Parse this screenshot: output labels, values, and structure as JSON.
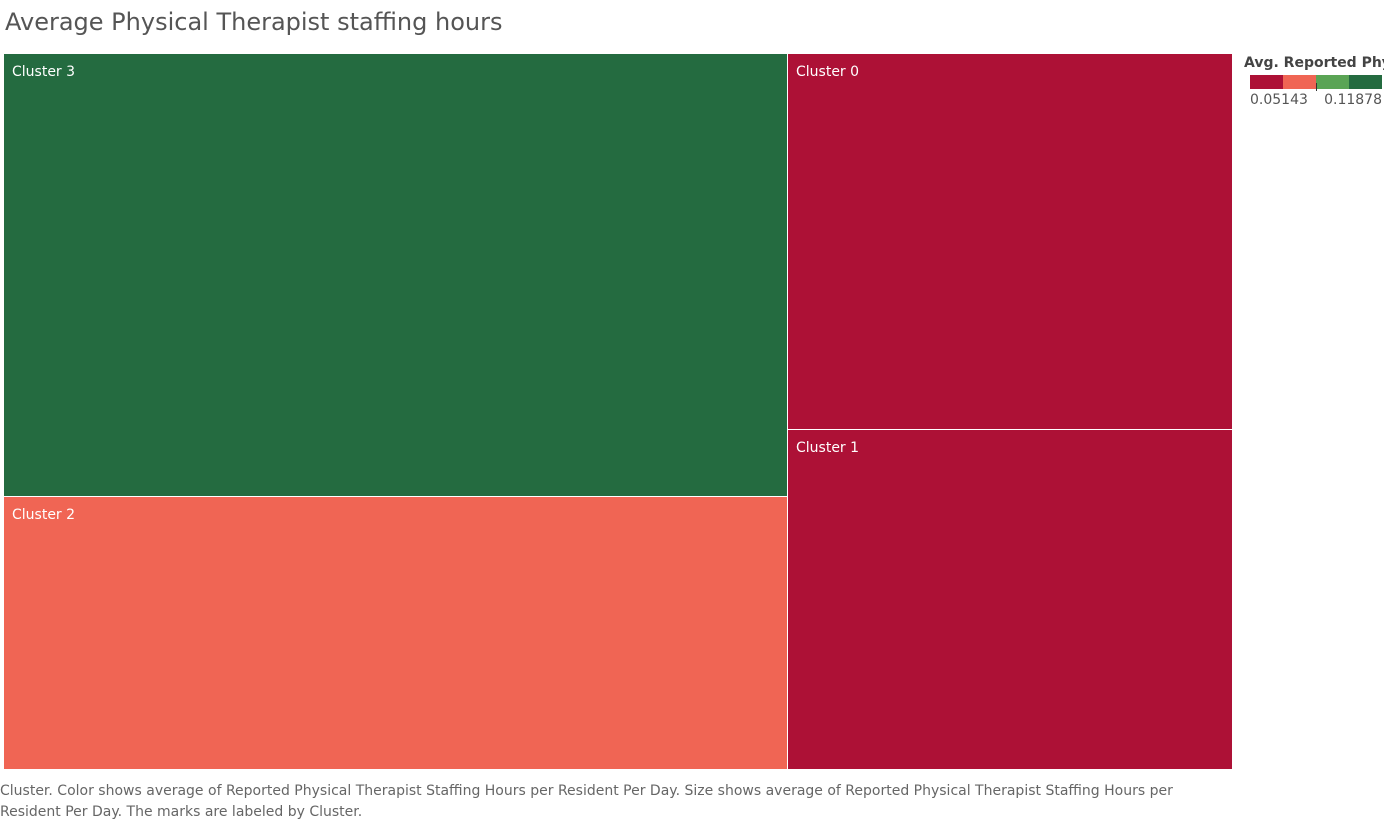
{
  "title": "Average Physical Therapist staffing hours",
  "legend": {
    "title": "Avg. Reported Phy..",
    "min_label": "0.05143",
    "max_label": "0.11878",
    "colors": [
      "#ad1136",
      "#f06554",
      "#5aa455",
      "#246b40"
    ]
  },
  "caption": "Cluster.  Color shows average of Reported Physical Therapist Staffing Hours per Resident Per Day.  Size shows average of Reported Physical Therapist Staffing Hours per Resident Per Day.  The marks are labeled by Cluster.",
  "chart_data": {
    "type": "treemap",
    "color_domain": [
      0.05143,
      0.11878
    ],
    "items": [
      {
        "label": "Cluster 3",
        "value": 0.11878,
        "color": "#246b40"
      },
      {
        "label": "Cluster 2",
        "value": 0.0731,
        "color": "#f06554"
      },
      {
        "label": "Cluster 0",
        "value": 0.0571,
        "color": "#ad1136"
      },
      {
        "label": "Cluster 1",
        "value": 0.05143,
        "color": "#ad1136"
      }
    ]
  }
}
